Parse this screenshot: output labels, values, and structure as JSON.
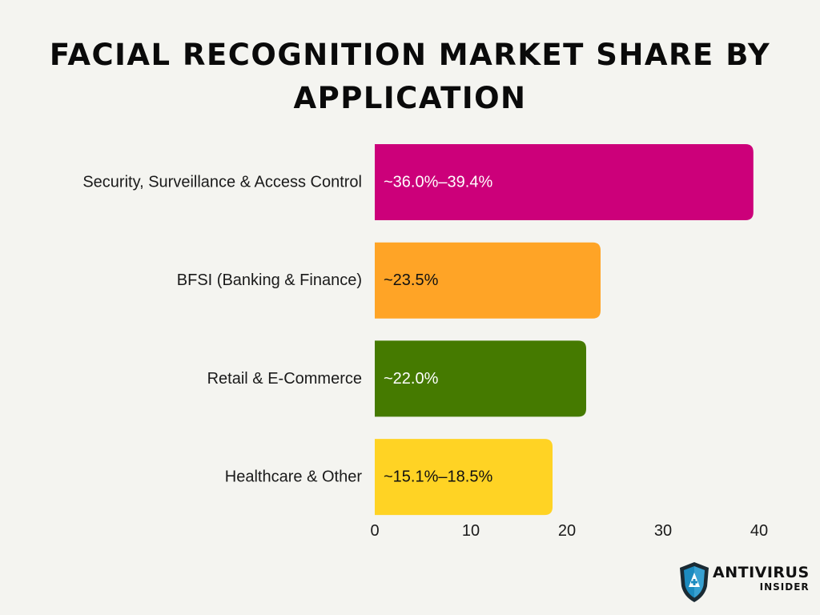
{
  "title": "Facial Recognition Market Share by Application",
  "brand": {
    "name": "ANTIVIRUS",
    "sub": "INSIDER",
    "shield_color": "#1c8bbf",
    "shield_dark": "#1a2a33"
  },
  "chart_data": {
    "type": "bar",
    "orientation": "horizontal",
    "title": "Facial Recognition Market Share by Application",
    "xlabel": "",
    "ylabel": "",
    "categories": [
      "Security, Surveillance & Access Control",
      "BFSI (Banking & Finance)",
      "Retail & E-Commerce",
      "Healthcare & Other"
    ],
    "values": [
      39.4,
      23.5,
      22.0,
      18.5
    ],
    "value_labels": [
      "~36.0%–39.4%",
      "~23.5%",
      "~22.0%",
      "~15.1%–18.5%"
    ],
    "colors": [
      "#cc007a",
      "#ffa426",
      "#457a00",
      "#ffd324"
    ],
    "label_colors": [
      "#ffffff",
      "#111111",
      "#ffffff",
      "#111111"
    ],
    "xlim": [
      0,
      40
    ],
    "xticks": [
      0,
      10,
      20,
      30,
      40
    ],
    "grid": false,
    "legend": "none"
  }
}
